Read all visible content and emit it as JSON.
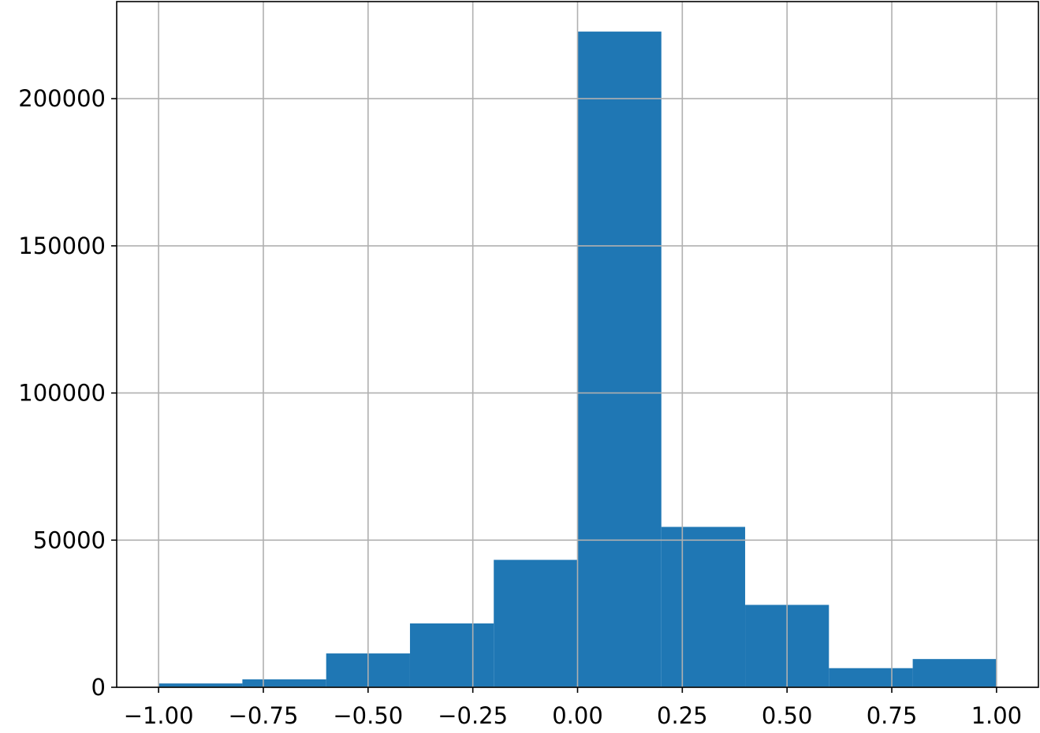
{
  "chart_data": {
    "type": "bar",
    "title": "",
    "xlabel": "",
    "ylabel": "",
    "bin_edges": [
      -1.0,
      -0.8,
      -0.6,
      -0.4,
      -0.2,
      0.0,
      0.2,
      0.4,
      0.6,
      0.8,
      1.0
    ],
    "values": [
      1300,
      2700,
      11500,
      21700,
      43300,
      222800,
      54500,
      28000,
      6500,
      9600
    ],
    "xlim": [
      -1.1,
      1.1
    ],
    "ylim": [
      0,
      233000
    ],
    "x_ticks": [
      -1.0,
      -0.75,
      -0.5,
      -0.25,
      0.0,
      0.25,
      0.5,
      0.75,
      1.0
    ],
    "x_tick_labels": [
      "−1.00",
      "−0.75",
      "−0.50",
      "−0.25",
      "0.00",
      "0.25",
      "0.50",
      "0.75",
      "1.00"
    ],
    "y_ticks": [
      0,
      50000,
      100000,
      150000,
      200000
    ],
    "y_tick_labels": [
      "0",
      "50000",
      "100000",
      "150000",
      "200000"
    ],
    "grid": true,
    "bar_color": "#1f77b4",
    "grid_color": "#b0b0b0"
  }
}
